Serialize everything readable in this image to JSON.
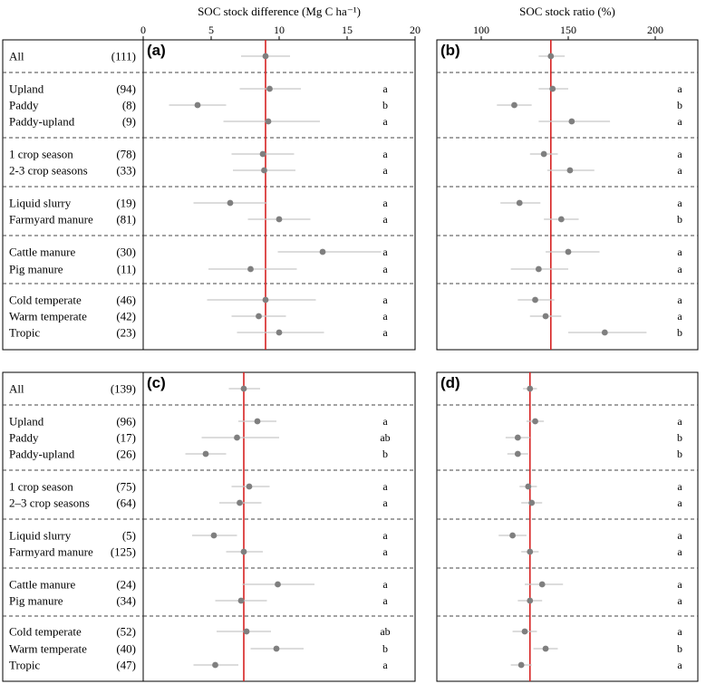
{
  "chart_data": {
    "type": "forest",
    "axis_titles": {
      "difference": "SOC stock difference (Mg C ha⁻¹)",
      "ratio": "SOC stock ratio (%)"
    },
    "axes": {
      "difference": {
        "range": [
          0,
          20
        ],
        "ticks": [
          0,
          5,
          10,
          15,
          20
        ]
      },
      "ratio": {
        "range": [
          100,
          225
        ],
        "ticks": [
          100,
          150,
          200
        ]
      }
    },
    "groups": [
      {
        "rows": [
          {
            "label": "All",
            "n": "(111)"
          }
        ]
      },
      {
        "rows": [
          {
            "label": "Upland",
            "n": "(94)"
          },
          {
            "label": "Paddy",
            "n": "(8)"
          },
          {
            "label": "Paddy-upland",
            "n": "(9)"
          }
        ]
      },
      {
        "rows": [
          {
            "label": "1 crop season",
            "n": "(78)"
          },
          {
            "label": "2-3 crop seasons",
            "n": "(33)"
          }
        ]
      },
      {
        "rows": [
          {
            "label": "Liquid slurry",
            "n": "(19)"
          },
          {
            "label": "Farmyard manure",
            "n": "(81)"
          }
        ]
      },
      {
        "rows": [
          {
            "label": "Cattle manure",
            "n": "(30)"
          },
          {
            "label": "Pig manure",
            "n": "(11)"
          }
        ]
      },
      {
        "rows": [
          {
            "label": "Cold temperate",
            "n": "(46)"
          },
          {
            "label": "Warm temperate",
            "n": "(42)"
          },
          {
            "label": "Tropic",
            "n": "(23)"
          }
        ]
      }
    ],
    "blocks": [
      {
        "labels": [
          {
            "label": "All",
            "n": "(111)"
          },
          {
            "label": "Upland",
            "n": "(94)"
          },
          {
            "label": "Paddy",
            "n": "(8)"
          },
          {
            "label": "Paddy-upland",
            "n": "(9)"
          },
          {
            "label": "1 crop season",
            "n": "(78)"
          },
          {
            "label": "2-3 crop seasons",
            "n": "(33)"
          },
          {
            "label": "Liquid slurry",
            "n": "(19)"
          },
          {
            "label": "Farmyard manure",
            "n": "(81)"
          },
          {
            "label": "Cattle manure",
            "n": "(30)"
          },
          {
            "label": "Pig manure",
            "n": "(11)"
          },
          {
            "label": "Cold temperate",
            "n": "(46)"
          },
          {
            "label": "Warm temperate",
            "n": "(42)"
          },
          {
            "label": "Tropic",
            "n": "(23)"
          }
        ],
        "panels": [
          {
            "id": "(a)",
            "axis": "difference",
            "reference": 9.0,
            "points": [
              {
                "est": 9.0,
                "lo": 7.2,
                "hi": 10.8,
                "sig": ""
              },
              {
                "est": 9.3,
                "lo": 7.1,
                "hi": 11.6,
                "sig": "a"
              },
              {
                "est": 4.0,
                "lo": 1.9,
                "hi": 6.1,
                "sig": "b"
              },
              {
                "est": 9.2,
                "lo": 5.9,
                "hi": 13.0,
                "sig": "a"
              },
              {
                "est": 8.8,
                "lo": 6.5,
                "hi": 11.1,
                "sig": "a"
              },
              {
                "est": 8.9,
                "lo": 6.6,
                "hi": 11.2,
                "sig": "a"
              },
              {
                "est": 6.4,
                "lo": 3.7,
                "hi": 9.1,
                "sig": "a"
              },
              {
                "est": 10.0,
                "lo": 7.7,
                "hi": 12.3,
                "sig": "a"
              },
              {
                "est": 13.2,
                "lo": 9.9,
                "hi": 17.5,
                "sig": "a"
              },
              {
                "est": 7.9,
                "lo": 4.8,
                "hi": 11.3,
                "sig": "a"
              },
              {
                "est": 9.0,
                "lo": 4.7,
                "hi": 12.7,
                "sig": "a"
              },
              {
                "est": 8.5,
                "lo": 6.5,
                "hi": 10.5,
                "sig": "a"
              },
              {
                "est": 10.0,
                "lo": 6.9,
                "hi": 13.3,
                "sig": "a"
              }
            ]
          },
          {
            "id": "(b)",
            "axis": "ratio",
            "reference": 140,
            "points": [
              {
                "est": 140,
                "lo": 133,
                "hi": 148,
                "sig": ""
              },
              {
                "est": 141,
                "lo": 133,
                "hi": 150,
                "sig": "a"
              },
              {
                "est": 119,
                "lo": 109,
                "hi": 129,
                "sig": "b"
              },
              {
                "est": 152,
                "lo": 133,
                "hi": 174,
                "sig": "a"
              },
              {
                "est": 136,
                "lo": 128,
                "hi": 144,
                "sig": "a"
              },
              {
                "est": 151,
                "lo": 138,
                "hi": 165,
                "sig": "a"
              },
              {
                "est": 122,
                "lo": 111,
                "hi": 134,
                "sig": "a"
              },
              {
                "est": 146,
                "lo": 136,
                "hi": 156,
                "sig": "b"
              },
              {
                "est": 150,
                "lo": 137,
                "hi": 168,
                "sig": "a"
              },
              {
                "est": 133,
                "lo": 117,
                "hi": 150,
                "sig": "a"
              },
              {
                "est": 131,
                "lo": 121,
                "hi": 142,
                "sig": "a"
              },
              {
                "est": 137,
                "lo": 128,
                "hi": 146,
                "sig": "a"
              },
              {
                "est": 171,
                "lo": 150,
                "hi": 195,
                "sig": "b"
              }
            ]
          }
        ]
      },
      {
        "labels": [
          {
            "label": "All",
            "n": "(139)"
          },
          {
            "label": "Upland",
            "n": "(96)"
          },
          {
            "label": "Paddy",
            "n": "(17)"
          },
          {
            "label": "Paddy-upland",
            "n": "(26)"
          },
          {
            "label": "1 crop season",
            "n": "(75)"
          },
          {
            "label": "2–3 crop seasons",
            "n": "(64)"
          },
          {
            "label": "Liquid slurry",
            "n": "(5)"
          },
          {
            "label": "Farmyard manure",
            "n": "(125)"
          },
          {
            "label": "Cattle manure",
            "n": "(24)"
          },
          {
            "label": "Pig manure",
            "n": "(34)"
          },
          {
            "label": "Cold temperate",
            "n": "(52)"
          },
          {
            "label": "Warm temperate",
            "n": "(40)"
          },
          {
            "label": "Tropic",
            "n": "(47)"
          }
        ],
        "panels": [
          {
            "id": "(c)",
            "axis": "difference",
            "reference": 7.4,
            "points": [
              {
                "est": 7.4,
                "lo": 6.3,
                "hi": 8.6,
                "sig": ""
              },
              {
                "est": 8.4,
                "lo": 7.0,
                "hi": 9.8,
                "sig": "a"
              },
              {
                "est": 6.9,
                "lo": 4.3,
                "hi": 10.0,
                "sig": "ab"
              },
              {
                "est": 4.6,
                "lo": 3.1,
                "hi": 6.1,
                "sig": "b"
              },
              {
                "est": 7.8,
                "lo": 6.5,
                "hi": 9.3,
                "sig": "a"
              },
              {
                "est": 7.1,
                "lo": 5.6,
                "hi": 8.7,
                "sig": "a"
              },
              {
                "est": 5.2,
                "lo": 3.6,
                "hi": 6.9,
                "sig": "a"
              },
              {
                "est": 7.4,
                "lo": 6.1,
                "hi": 8.8,
                "sig": "a"
              },
              {
                "est": 9.9,
                "lo": 7.3,
                "hi": 12.6,
                "sig": "a"
              },
              {
                "est": 7.2,
                "lo": 5.3,
                "hi": 9.1,
                "sig": "a"
              },
              {
                "est": 7.6,
                "lo": 5.4,
                "hi": 9.4,
                "sig": "ab"
              },
              {
                "est": 9.8,
                "lo": 7.9,
                "hi": 11.8,
                "sig": "b"
              },
              {
                "est": 5.3,
                "lo": 3.7,
                "hi": 7.0,
                "sig": "a"
              }
            ]
          },
          {
            "id": "(d)",
            "axis": "ratio",
            "reference": 128,
            "points": [
              {
                "est": 128,
                "lo": 124,
                "hi": 132,
                "sig": ""
              },
              {
                "est": 131,
                "lo": 126,
                "hi": 136,
                "sig": "a"
              },
              {
                "est": 121,
                "lo": 114,
                "hi": 128,
                "sig": "b"
              },
              {
                "est": 121,
                "lo": 115,
                "hi": 127,
                "sig": "b"
              },
              {
                "est": 127,
                "lo": 122,
                "hi": 132,
                "sig": "a"
              },
              {
                "est": 129,
                "lo": 123,
                "hi": 135,
                "sig": "a"
              },
              {
                "est": 118,
                "lo": 110,
                "hi": 126,
                "sig": "a"
              },
              {
                "est": 128,
                "lo": 123,
                "hi": 133,
                "sig": "a"
              },
              {
                "est": 135,
                "lo": 125,
                "hi": 147,
                "sig": "a"
              },
              {
                "est": 128,
                "lo": 121,
                "hi": 135,
                "sig": "a"
              },
              {
                "est": 125,
                "lo": 118,
                "hi": 132,
                "sig": "a"
              },
              {
                "est": 137,
                "lo": 130,
                "hi": 144,
                "sig": "b"
              },
              {
                "est": 123,
                "lo": 117,
                "hi": 129,
                "sig": "a"
              }
            ]
          }
        ]
      }
    ]
  }
}
